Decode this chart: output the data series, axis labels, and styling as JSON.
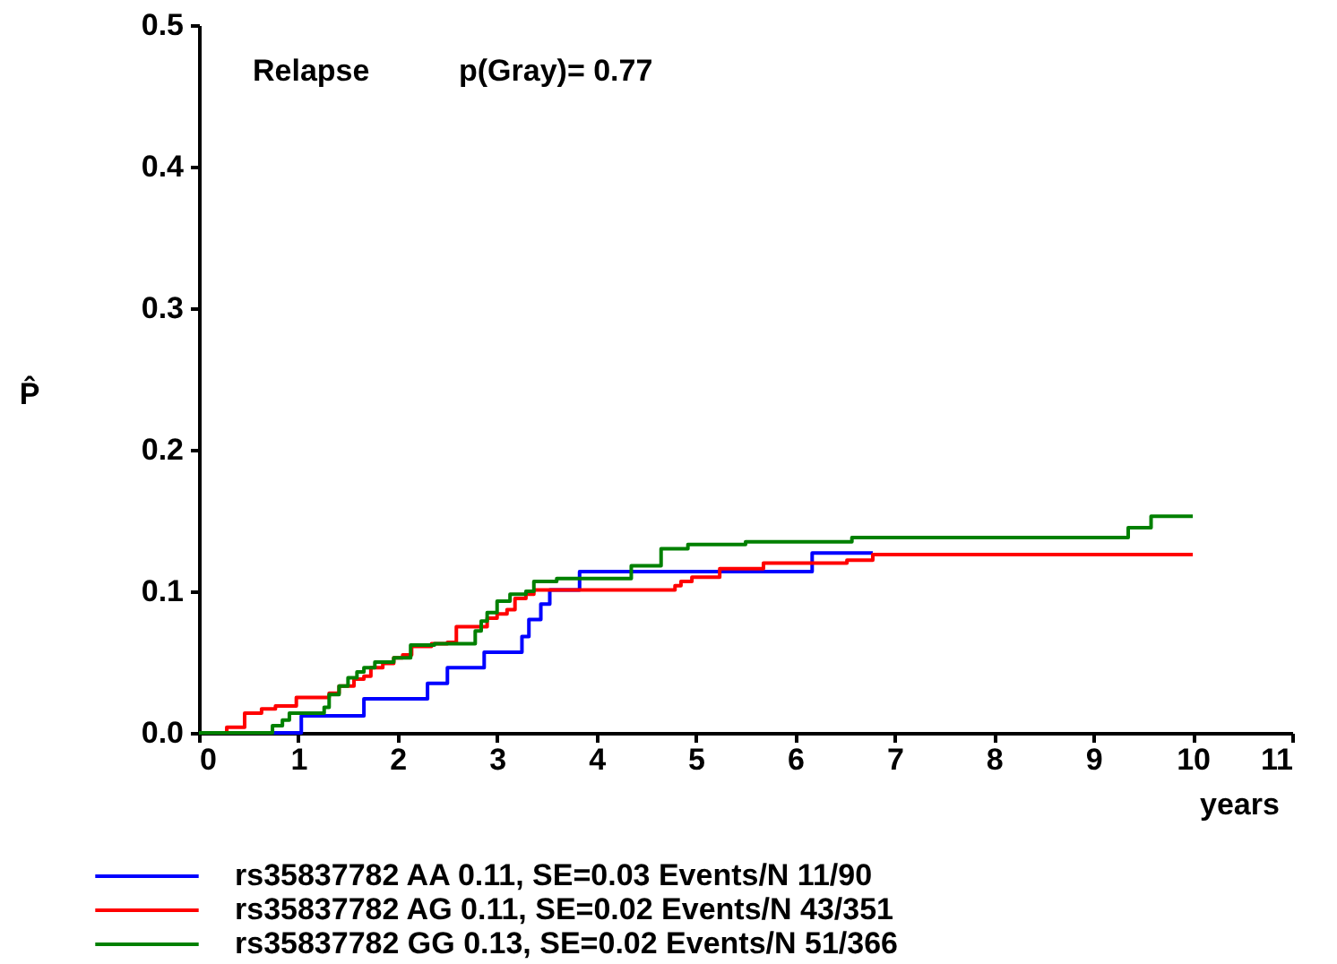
{
  "chart_data": {
    "type": "step",
    "xlabel": "years",
    "ylabel": "P̂",
    "annotations": [
      "Relapse",
      "p(Gray)= 0.77"
    ],
    "xlim": [
      0,
      11
    ],
    "xticks": [
      0,
      1,
      2,
      3,
      4,
      5,
      6,
      7,
      8,
      9,
      10,
      11
    ],
    "ylim": [
      0,
      0.5
    ],
    "yticks": [
      {
        "value": 0,
        "label": "0.0"
      },
      0.1,
      0.2,
      0.3,
      0.4,
      0.5
    ],
    "grid": false,
    "legend": "bottom",
    "line_style": "solid",
    "marker": "none",
    "series": [
      {
        "name": "rs35837782 AA 0.11, SE=0.03 Events/N 11/90",
        "color": "#0000ff",
        "x": [
          0,
          1.03,
          1.66,
          2.3,
          2.5,
          2.87,
          3.25,
          3.32,
          3.44,
          3.53,
          3.83,
          6.17,
          6.78
        ],
        "values": [
          0,
          0.012,
          0.024,
          0.035,
          0.046,
          0.057,
          0.068,
          0.08,
          0.091,
          0.101,
          0.114,
          0.127,
          0.127
        ]
      },
      {
        "name": "rs35837782 AG 0.11, SE=0.02 Events/N 43/351",
        "color": "#ff0000",
        "x": [
          0,
          0.28,
          0.46,
          0.63,
          0.77,
          0.98,
          1.31,
          1.41,
          1.56,
          1.66,
          1.73,
          1.85,
          1.96,
          2.05,
          2.14,
          2.34,
          2.5,
          2.59,
          2.9,
          3.0,
          3.1,
          3.18,
          3.29,
          3.37,
          4.79,
          4.85,
          4.96,
          5.24,
          5.68,
          6.52,
          6.78,
          10
        ],
        "values": [
          0,
          0.004,
          0.014,
          0.017,
          0.019,
          0.025,
          0.028,
          0.033,
          0.038,
          0.04,
          0.046,
          0.049,
          0.053,
          0.055,
          0.061,
          0.063,
          0.064,
          0.075,
          0.081,
          0.084,
          0.087,
          0.095,
          0.098,
          0.101,
          0.104,
          0.107,
          0.11,
          0.116,
          0.12,
          0.122,
          0.126,
          0.126
        ]
      },
      {
        "name": "rs35837782 GG 0.13, SE=0.02 Events/N 51/366",
        "color": "#008000",
        "x": [
          0,
          0.74,
          0.84,
          0.91,
          1.26,
          1.31,
          1.41,
          1.5,
          1.59,
          1.66,
          1.77,
          1.96,
          2.13,
          2.37,
          2.78,
          2.84,
          2.9,
          3.0,
          3.13,
          3.29,
          3.37,
          3.6,
          4.35,
          4.65,
          4.92,
          5.5,
          6.57,
          9.35,
          9.58,
          10
        ],
        "values": [
          0,
          0.005,
          0.009,
          0.014,
          0.018,
          0.027,
          0.033,
          0.039,
          0.043,
          0.046,
          0.05,
          0.053,
          0.062,
          0.063,
          0.072,
          0.079,
          0.085,
          0.093,
          0.098,
          0.1,
          0.107,
          0.109,
          0.118,
          0.13,
          0.133,
          0.135,
          0.138,
          0.145,
          0.153,
          0.153
        ]
      }
    ]
  }
}
